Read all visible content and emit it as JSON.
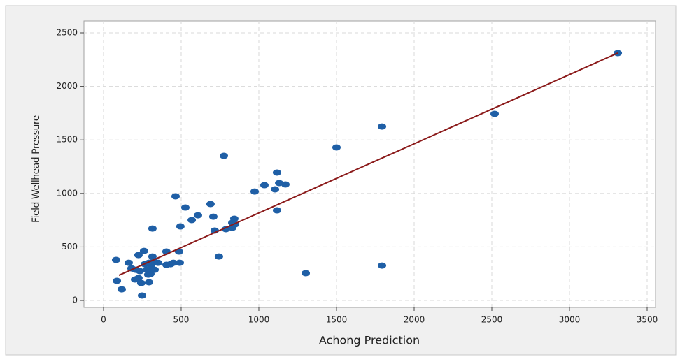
{
  "chart_data": {
    "type": "scatter",
    "x_label": "Achong Prediction",
    "y_label": "Field Wellhead Pressure",
    "xlim": [
      -126,
      3554
    ],
    "ylim": [
      -65,
      2611
    ],
    "xticks": [
      0,
      500,
      1000,
      1500,
      2000,
      2500,
      3000,
      3500
    ],
    "yticks": [
      0,
      500,
      1000,
      1500,
      2000,
      2500
    ],
    "grid": true,
    "series": [
      {
        "color": "#1f5fa6",
        "x": [
          81,
          86,
          117,
          162,
          180,
          207,
          225,
          203,
          225,
          234,
          243,
          248,
          261,
          266,
          279,
          288,
          293,
          302,
          302,
          306,
          315,
          315,
          324,
          293,
          329,
          351,
          405,
          405,
          432,
          450,
          464,
          486,
          491,
          495,
          527,
          568,
          608,
          689,
          707,
          716,
          743,
          775,
          788,
          829,
          829,
          842,
          847,
          973,
          1036,
          1104,
          1117,
          1131,
          1171,
          1117,
          1302,
          1500,
          1793,
          1793,
          2518,
          3311
        ],
        "values": [
          379,
          183,
          104,
          352,
          300,
          287,
          424,
          196,
          209,
          274,
          163,
          46,
          463,
          339,
          287,
          241,
          170,
          248,
          339,
          326,
          411,
          672,
          366,
          352,
          287,
          352,
          457,
          333,
          339,
          352,
          973,
          457,
          352,
          692,
          868,
          751,
          796,
          901,
          783,
          653,
          411,
          1351,
          666,
          679,
          725,
          764,
          711,
          1018,
          1077,
          1038,
          1195,
          1097,
          1084,
          842,
          255,
          1430,
          1625,
          326,
          1743,
          2311
        ]
      }
    ],
    "fit_line": {
      "color": "#8b1a1a",
      "x": [
        99,
        3311
      ],
      "values": [
        235,
        2311
      ]
    }
  }
}
